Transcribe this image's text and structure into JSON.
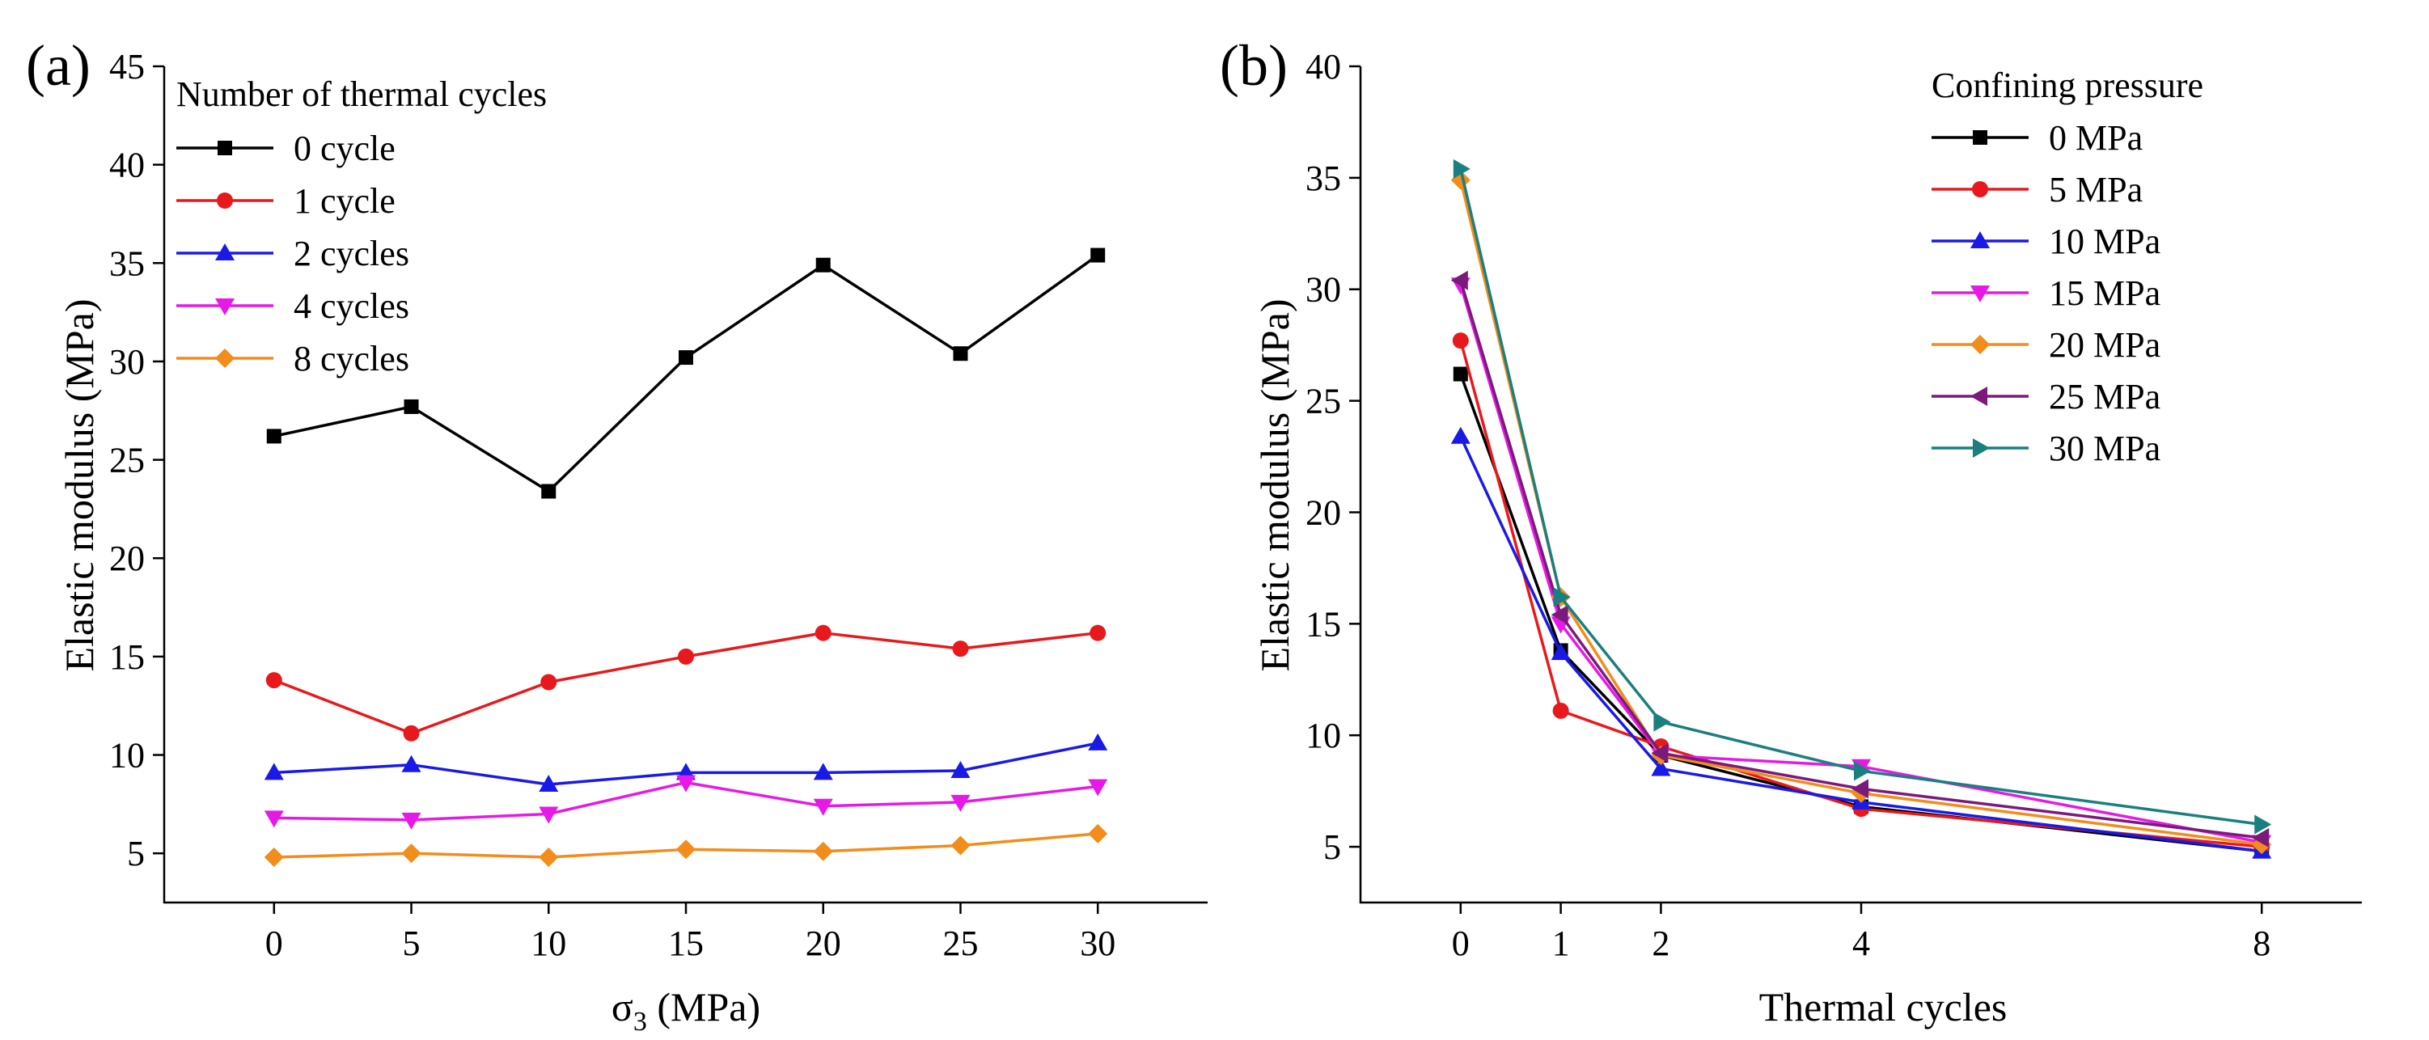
{
  "chart_data": [
    {
      "panel": "(a)",
      "type": "line",
      "xlabel": "σ₃ (MPa)",
      "xlabel_main": "σ",
      "xlabel_sub": "3",
      "xlabel_tail": " (MPa)",
      "ylabel": "Elastic modulus (MPa)",
      "x": [
        0,
        5,
        10,
        15,
        20,
        25,
        30
      ],
      "x_ticks": [
        0,
        5,
        10,
        15,
        20,
        25,
        30
      ],
      "y_ticks": [
        5,
        10,
        15,
        20,
        25,
        30,
        35,
        40,
        45
      ],
      "xlim": [
        -4,
        34
      ],
      "ylim": [
        2.5,
        45
      ],
      "legend_title": "Number of thermal cycles",
      "legend_position": "top-left",
      "series": [
        {
          "name": "0 cycle",
          "color": "#000000",
          "marker": "square",
          "values": [
            26.2,
            27.7,
            23.4,
            30.2,
            34.9,
            30.4,
            35.4
          ]
        },
        {
          "name": "1 cycle",
          "color": "#e8191c",
          "marker": "circle",
          "values": [
            13.8,
            11.1,
            13.7,
            15.0,
            16.2,
            15.4,
            16.2
          ]
        },
        {
          "name": "2 cycles",
          "color": "#1a1ae6",
          "marker": "triangle-up",
          "values": [
            9.1,
            9.5,
            8.5,
            9.1,
            9.1,
            9.2,
            10.6
          ]
        },
        {
          "name": "4 cycles",
          "color": "#e619e6",
          "marker": "triangle-down",
          "values": [
            6.8,
            6.7,
            7.0,
            8.6,
            7.4,
            7.6,
            8.4
          ]
        },
        {
          "name": "8 cycles",
          "color": "#f28c1a",
          "marker": "diamond",
          "values": [
            4.8,
            5.0,
            4.8,
            5.2,
            5.1,
            5.4,
            6.0
          ]
        }
      ]
    },
    {
      "panel": "(b)",
      "type": "line",
      "xlabel": "Thermal cycles",
      "ylabel": "Elastic modulus (MPa)",
      "x": [
        0,
        1,
        2,
        4,
        8
      ],
      "x_ticks": [
        0,
        1,
        2,
        4,
        8
      ],
      "y_ticks": [
        5,
        10,
        15,
        20,
        25,
        30,
        35,
        40
      ],
      "xlim": [
        -1,
        9
      ],
      "ylim": [
        2.5,
        40
      ],
      "legend_title": "Confining pressure",
      "legend_position": "top-right",
      "series": [
        {
          "name": "0 MPa",
          "color": "#000000",
          "marker": "square",
          "values": [
            26.2,
            13.8,
            9.1,
            6.8,
            4.8
          ]
        },
        {
          "name": "5 MPa",
          "color": "#e8191c",
          "marker": "circle",
          "values": [
            27.7,
            11.1,
            9.5,
            6.7,
            5.0
          ]
        },
        {
          "name": "10 MPa",
          "color": "#1a1ae6",
          "marker": "triangle-up",
          "values": [
            23.4,
            13.7,
            8.5,
            7.0,
            4.8
          ]
        },
        {
          "name": "15 MPa",
          "color": "#e619e6",
          "marker": "triangle-down",
          "values": [
            30.2,
            15.0,
            9.1,
            8.6,
            5.2
          ]
        },
        {
          "name": "20 MPa",
          "color": "#f28c1a",
          "marker": "diamond",
          "values": [
            34.9,
            16.2,
            9.1,
            7.4,
            5.1
          ]
        },
        {
          "name": "25 MPa",
          "color": "#7a1a7a",
          "marker": "triangle-left",
          "values": [
            30.4,
            15.4,
            9.2,
            7.6,
            5.4
          ]
        },
        {
          "name": "30 MPa",
          "color": "#1a7f7f",
          "marker": "triangle-right",
          "values": [
            35.4,
            16.2,
            10.6,
            8.4,
            6.0
          ]
        }
      ]
    }
  ]
}
